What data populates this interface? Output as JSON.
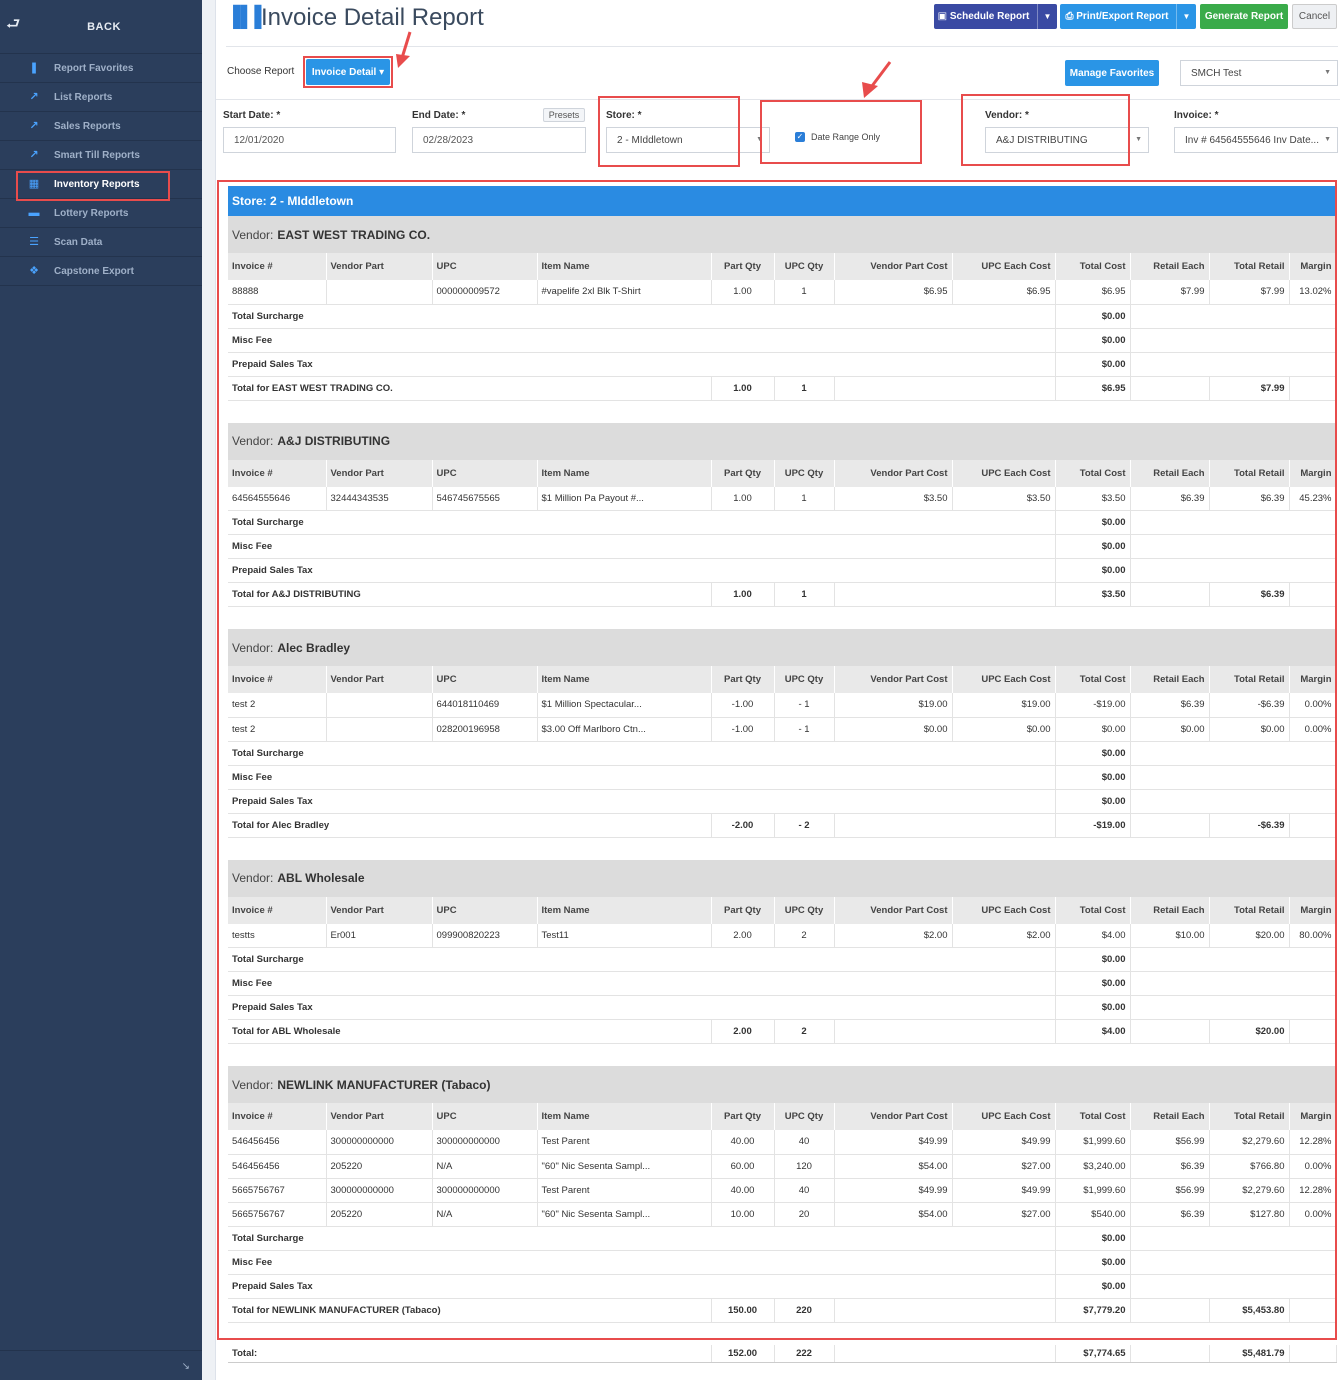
{
  "sidebar": {
    "back_label": "BACK",
    "items": [
      {
        "label": "Report Favorites",
        "icon": "bookmark-icon",
        "glyph": "❚"
      },
      {
        "label": "List Reports",
        "icon": "line-chart-icon",
        "glyph": "↗"
      },
      {
        "label": "Sales Reports",
        "icon": "line-chart-icon",
        "glyph": "↗"
      },
      {
        "label": "Smart Till Reports",
        "icon": "line-chart-icon",
        "glyph": "↗"
      },
      {
        "label": "Inventory Reports",
        "icon": "inventory-icon",
        "glyph": "▦"
      },
      {
        "label": "Lottery Reports",
        "icon": "ticket-icon",
        "glyph": "▬"
      },
      {
        "label": "Scan Data",
        "icon": "list-icon",
        "glyph": "☰"
      },
      {
        "label": "Capstone Export",
        "icon": "boxes-icon",
        "glyph": "❖"
      }
    ],
    "footer_glyph": "↘"
  },
  "header": {
    "title": "Invoice Detail Report",
    "schedule_label": "Schedule Report",
    "print_label": "Print/Export Report",
    "generate_label": "Generate Report",
    "cancel_label": "Cancel"
  },
  "choose": {
    "label": "Choose Report",
    "report_button": "Invoice Detail ▾",
    "favorites_button": "Manage Favorites",
    "favorite_value": "SMCH Test"
  },
  "filters": {
    "start_label": "Start Date: *",
    "start_value": "12/01/2020",
    "end_label": "End Date: *",
    "end_value": "02/28/2023",
    "presets_label": "Presets",
    "store_label": "Store: *",
    "store_value": "2 - MIddletown",
    "date_range_label": "Date Range Only",
    "vendor_label": "Vendor: *",
    "vendor_value": "A&J DISTRIBUTING",
    "invoice_label": "Invoice: *",
    "invoice_value": "Inv # 64564555646 Inv Date..."
  },
  "report": {
    "store_title": "Store: 2 - MIddletown",
    "vendor_prefix": "Vendor:",
    "columns": [
      "Invoice #",
      "Vendor Part",
      "UPC",
      "Item Name",
      "Part Qty",
      "UPC Qty",
      "Vendor Part Cost",
      "UPC Each Cost",
      "Total Cost",
      "Retail Each",
      "Total Retail",
      "Margin"
    ],
    "sub_labels": [
      "Total Surcharge",
      "Misc Fee",
      "Prepaid Sales Tax"
    ],
    "vendors": [
      {
        "name": "EAST WEST TRADING CO.",
        "rows": [
          [
            "88888",
            "",
            "000000009572",
            "#vapelife 2xl Blk T-Shirt",
            "1.00",
            "1",
            "$6.95",
            "$6.95",
            "$6.95",
            "$7.99",
            "$7.99",
            "13.02%"
          ]
        ],
        "subs": [
          "$0.00",
          "$0.00",
          "$0.00"
        ],
        "total": {
          "label": "Total for EAST WEST TRADING CO.",
          "part_qty": "1.00",
          "upc_qty": "1",
          "total_cost": "$6.95",
          "total_retail": "$7.99"
        }
      },
      {
        "name": "A&J DISTRIBUTING",
        "rows": [
          [
            "64564555646",
            "32444343535",
            "546745675565",
            "$1 Million Pa Payout #...",
            "1.00",
            "1",
            "$3.50",
            "$3.50",
            "$3.50",
            "$6.39",
            "$6.39",
            "45.23%"
          ]
        ],
        "subs": [
          "$0.00",
          "$0.00",
          "$0.00"
        ],
        "total": {
          "label": "Total for A&J DISTRIBUTING",
          "part_qty": "1.00",
          "upc_qty": "1",
          "total_cost": "$3.50",
          "total_retail": "$6.39"
        }
      },
      {
        "name": "Alec Bradley",
        "rows": [
          [
            "test 2",
            "",
            "644018110469",
            "$1 Million Spectacular...",
            "-1.00",
            "- 1",
            "$19.00",
            "$19.00",
            "-$19.00",
            "$6.39",
            "-$6.39",
            "0.00%"
          ],
          [
            "test 2",
            "",
            "028200196958",
            "$3.00 Off Marlboro Ctn...",
            "-1.00",
            "- 1",
            "$0.00",
            "$0.00",
            "$0.00",
            "$0.00",
            "$0.00",
            "0.00%"
          ]
        ],
        "subs": [
          "$0.00",
          "$0.00",
          "$0.00"
        ],
        "total": {
          "label": "Total for Alec Bradley",
          "part_qty": "-2.00",
          "upc_qty": "- 2",
          "total_cost": "-$19.00",
          "total_retail": "-$6.39"
        }
      },
      {
        "name": "ABL Wholesale",
        "rows": [
          [
            "testts",
            "Er001",
            "099900820223",
            "Test11",
            "2.00",
            "2",
            "$2.00",
            "$2.00",
            "$4.00",
            "$10.00",
            "$20.00",
            "80.00%"
          ]
        ],
        "subs": [
          "$0.00",
          "$0.00",
          "$0.00"
        ],
        "total": {
          "label": "Total for ABL Wholesale",
          "part_qty": "2.00",
          "upc_qty": "2",
          "total_cost": "$4.00",
          "total_retail": "$20.00"
        }
      },
      {
        "name": "NEWLINK MANUFACTURER (Tabaco)",
        "rows": [
          [
            "546456456",
            "300000000000",
            "300000000000",
            "Test Parent",
            "40.00",
            "40",
            "$49.99",
            "$49.99",
            "$1,999.60",
            "$56.99",
            "$2,279.60",
            "12.28%"
          ],
          [
            "546456456",
            "205220",
            "N/A",
            "\"60\" Nic Sesenta Sampl...",
            "60.00",
            "120",
            "$54.00",
            "$27.00",
            "$3,240.00",
            "$6.39",
            "$766.80",
            "0.00%"
          ],
          [
            "5665756767",
            "300000000000",
            "300000000000",
            "Test Parent",
            "40.00",
            "40",
            "$49.99",
            "$49.99",
            "$1,999.60",
            "$56.99",
            "$2,279.60",
            "12.28%"
          ],
          [
            "5665756767",
            "205220",
            "N/A",
            "\"60\" Nic Sesenta Sampl...",
            "10.00",
            "20",
            "$54.00",
            "$27.00",
            "$540.00",
            "$6.39",
            "$127.80",
            "0.00%"
          ]
        ],
        "subs": [
          "$0.00",
          "$0.00",
          "$0.00"
        ],
        "total": {
          "label": "Total for NEWLINK MANUFACTURER (Tabaco)",
          "part_qty": "150.00",
          "upc_qty": "220",
          "total_cost": "$7,779.20",
          "total_retail": "$5,453.80"
        }
      }
    ],
    "grand": {
      "label": "Total:",
      "part_qty": "152.00",
      "upc_qty": "222",
      "total_cost": "$7,774.65",
      "total_retail": "$5,481.79"
    }
  },
  "colors": {
    "highlight": "#e84c4c",
    "sidebar": "#2b3e5c",
    "accent": "#2a95e6"
  }
}
